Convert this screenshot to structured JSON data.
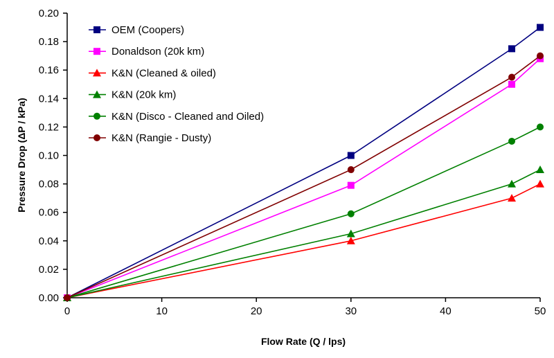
{
  "chart_data": {
    "type": "line",
    "title": "",
    "xlabel": "Flow Rate (Q / lps)",
    "ylabel": "Pressure Drop (ΔP / kPa)",
    "xlim": [
      0,
      50
    ],
    "ylim": [
      0,
      0.2
    ],
    "xticks": [
      "0",
      "10",
      "20",
      "30",
      "40",
      "50"
    ],
    "yticks": [
      "0.00",
      "0.02",
      "0.04",
      "0.06",
      "0.08",
      "0.10",
      "0.12",
      "0.14",
      "0.16",
      "0.18",
      "0.20"
    ],
    "grid": false,
    "legend_position": "top-left",
    "x": [
      0,
      30,
      47,
      50
    ],
    "series": [
      {
        "name": "OEM (Coopers)",
        "color": "#000080",
        "marker": "square",
        "values": [
          0,
          0.1,
          0.175,
          0.19
        ]
      },
      {
        "name": "Donaldson (20k km)",
        "color": "#ff00ff",
        "marker": "square",
        "values": [
          0,
          0.079,
          0.15,
          0.168
        ]
      },
      {
        "name": "K&N (Cleaned & oiled)",
        "color": "#ff0000",
        "marker": "triangle",
        "values": [
          0,
          0.04,
          0.07,
          0.08
        ]
      },
      {
        "name": "K&N (20k km)",
        "color": "#008000",
        "marker": "triangle",
        "values": [
          0,
          0.045,
          0.08,
          0.09
        ]
      },
      {
        "name": "K&N (Disco - Cleaned and Oiled)",
        "color": "#008000",
        "marker": "circle",
        "values": [
          0,
          0.059,
          0.11,
          0.12
        ]
      },
      {
        "name": "K&N (Rangie - Dusty)",
        "color": "#800000",
        "marker": "circle",
        "values": [
          0,
          0.09,
          0.155,
          0.17
        ]
      }
    ]
  }
}
